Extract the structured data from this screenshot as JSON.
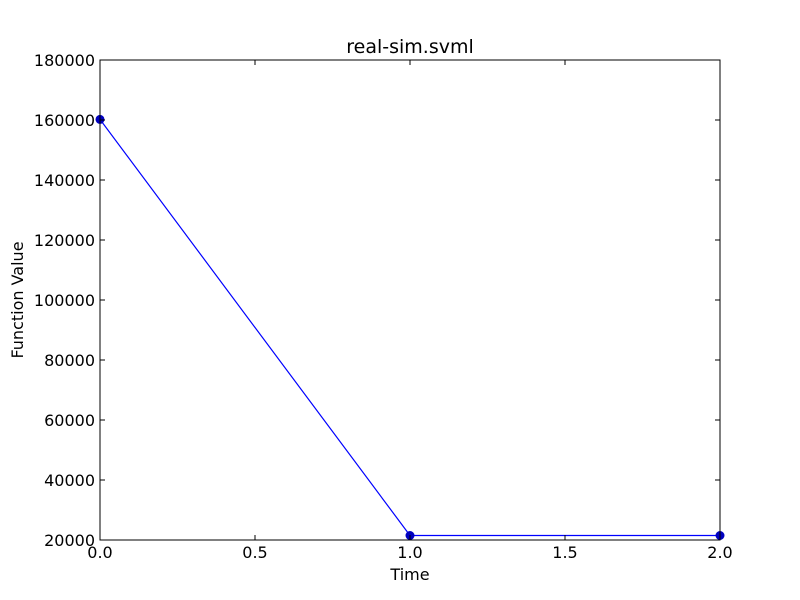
{
  "chart_data": {
    "type": "line",
    "title": "real-sim.svml",
    "xlabel": "Time",
    "ylabel": "Function Value",
    "xlim": [
      0,
      2
    ],
    "ylim": [
      20000,
      180000
    ],
    "x_ticks": [
      "0.0",
      "0.5",
      "1.0",
      "1.5",
      "2.0"
    ],
    "y_ticks": [
      "20000",
      "40000",
      "60000",
      "80000",
      "100000",
      "120000",
      "140000",
      "160000",
      "180000"
    ],
    "grid": false,
    "series": [
      {
        "x": [
          0.0,
          1.0,
          2.0
        ],
        "y": [
          160200,
          21500,
          21500
        ],
        "color": "#0000ff",
        "marker_color": "#0000bf"
      }
    ]
  }
}
